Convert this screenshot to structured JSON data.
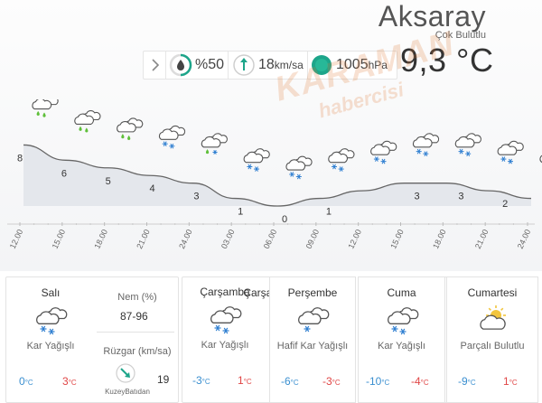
{
  "header": {
    "city": "Aksaray",
    "condition": "Çok Bulutlu",
    "temperature": "9,3 °C"
  },
  "stats": {
    "humidity": "%50",
    "humidity_fraction": 0.5,
    "wind_value": "18",
    "wind_unit": "km/sa",
    "pressure_value": "1005",
    "pressure_unit": "hPa"
  },
  "watermark": {
    "line1": "KARAMAN",
    "line2": "habercisi"
  },
  "chart_data": {
    "type": "area",
    "x": [
      "12.00",
      "15.00",
      "18.00",
      "21.00",
      "24.00",
      "03.00",
      "06.00",
      "09.00",
      "12.00",
      "15.00",
      "18.00",
      "21.00",
      "24.00"
    ],
    "values": [
      8,
      6,
      5,
      4,
      3,
      1,
      0,
      1,
      2,
      3,
      3,
      2,
      1
    ],
    "value_labels": [
      "8",
      "6",
      "5",
      "4",
      "3",
      "1",
      "0",
      "1",
      "",
      "3",
      "3",
      "2",
      "1"
    ],
    "icons": [
      "rain",
      "rain",
      "rain",
      "snow",
      "rain-snow",
      "snow",
      "snow",
      "snow",
      "snow",
      "snow",
      "snow",
      "snow",
      "snow"
    ],
    "ylim": [
      0,
      9
    ]
  },
  "forecast": {
    "today": {
      "day": "Salı",
      "condition": "Kar Yağışlı",
      "icon": "snow",
      "min": "0",
      "max": "3",
      "unit": "°C",
      "humidity_label": "Nem (%)",
      "humidity_value": "87-96",
      "wind_label": "Rüzgar (km/sa)",
      "wind_value": "19",
      "wind_direction": "KuzeyBatıdan"
    },
    "days": [
      {
        "day": "Çarşamba",
        "condition": "Kar Yağışlı",
        "icon": "snow",
        "min": "-3",
        "max": "1",
        "unit": "°C"
      },
      {
        "day": "Perşembe",
        "condition": "Hafif Kar Yağışlı",
        "icon": "snow-light",
        "min": "-6",
        "max": "-3",
        "unit": "°C"
      },
      {
        "day": "Cuma",
        "condition": "Kar Yağışlı",
        "icon": "snow",
        "min": "-10",
        "max": "-4",
        "unit": "°C"
      },
      {
        "day": "Cumartesi",
        "condition": "Parçalı Bulutlu",
        "icon": "partly-cloudy",
        "min": "-9",
        "max": "1",
        "unit": "°C"
      }
    ]
  },
  "colors": {
    "accent": "#1da58a",
    "min_temp": "#3a8fd0",
    "max_temp": "#e04545",
    "area_fill": "#e4e7ec",
    "watermark": "#e07a35"
  }
}
